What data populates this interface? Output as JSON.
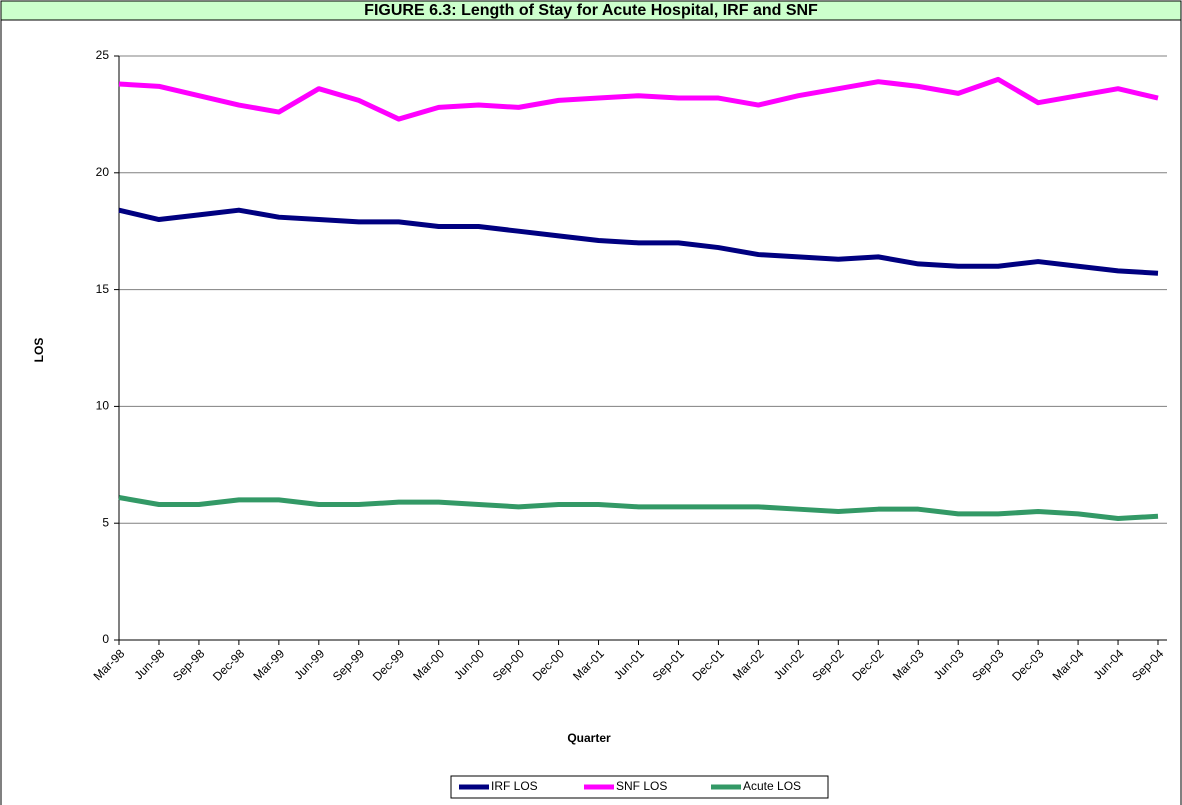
{
  "chart_data": {
    "type": "line",
    "title": "FIGURE 6.3: Length of Stay for Acute Hospital, IRF and SNF",
    "x_label": "Quarter",
    "y_label": "LOS",
    "categories": [
      "Mar-98",
      "Jun-98",
      "Sep-98",
      "Dec-98",
      "Mar-99",
      "Jun-99",
      "Sep-99",
      "Dec-99",
      "Mar-00",
      "Jun-00",
      "Sep-00",
      "Dec-00",
      "Mar-01",
      "Jun-01",
      "Sep-01",
      "Dec-01",
      "Mar-02",
      "Jun-02",
      "Sep-02",
      "Dec-02",
      "Mar-03",
      "Jun-03",
      "Sep-03",
      "Dec-03",
      "Mar-04",
      "Jun-04",
      "Sep-04"
    ],
    "series": [
      {
        "name": "IRF LOS",
        "color": "#000080",
        "values": [
          18.4,
          18.0,
          18.2,
          18.4,
          18.1,
          18.0,
          17.9,
          17.9,
          17.7,
          17.7,
          17.5,
          17.3,
          17.1,
          17.0,
          17.0,
          16.8,
          16.5,
          16.4,
          16.3,
          16.4,
          16.1,
          16.0,
          16.0,
          16.2,
          16.0,
          15.8,
          15.7
        ]
      },
      {
        "name": "SNF LOS",
        "color": "#ff00ff",
        "values": [
          23.8,
          23.7,
          23.3,
          22.9,
          22.6,
          23.6,
          23.1,
          22.3,
          22.8,
          22.9,
          22.8,
          23.1,
          23.2,
          23.3,
          23.2,
          23.2,
          22.9,
          23.3,
          23.6,
          23.9,
          23.7,
          23.4,
          24.0,
          23.0,
          23.3,
          23.6,
          23.2
        ]
      },
      {
        "name": "Acute LOS",
        "color": "#339966",
        "values": [
          6.1,
          5.8,
          5.8,
          6.0,
          6.0,
          5.8,
          5.8,
          5.9,
          5.9,
          5.8,
          5.7,
          5.8,
          5.8,
          5.7,
          5.7,
          5.7,
          5.7,
          5.6,
          5.5,
          5.6,
          5.6,
          5.4,
          5.4,
          5.5,
          5.4,
          5.2,
          5.3
        ]
      }
    ],
    "ylim": [
      0,
      25
    ],
    "yticks": [
      0,
      5,
      10,
      15,
      20,
      25
    ],
    "grid": true,
    "legend": "bottom"
  }
}
